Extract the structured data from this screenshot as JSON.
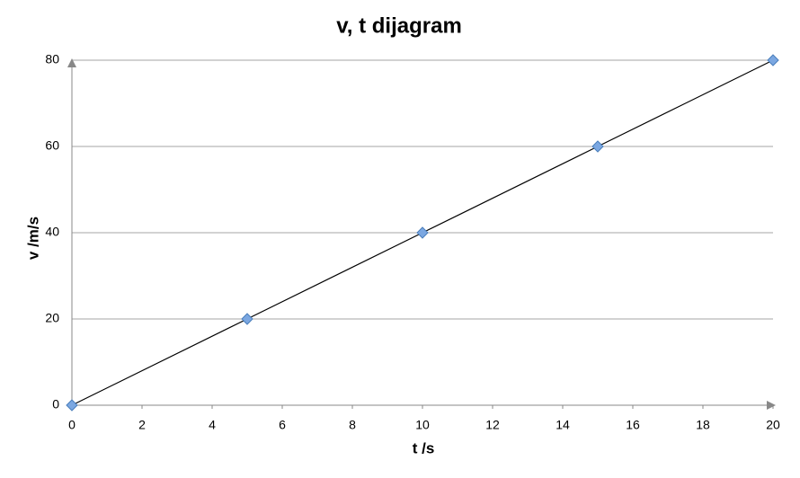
{
  "chart_data": {
    "type": "line",
    "title": "v, t dijagram",
    "x_label": "t /s",
    "y_label": "v /m/s",
    "x": [
      0,
      5,
      10,
      15,
      20
    ],
    "values": [
      0,
      20,
      40,
      60,
      80
    ],
    "color": "#000000",
    "marker_color": "#7ba7e1",
    "xlim": [
      0,
      20
    ],
    "xticks": [
      0,
      2,
      4,
      6,
      8,
      10,
      12,
      14,
      16,
      18,
      20
    ],
    "ylim": [
      0,
      80
    ],
    "yticks": [
      0,
      20,
      40,
      60,
      80
    ],
    "grid": true
  }
}
